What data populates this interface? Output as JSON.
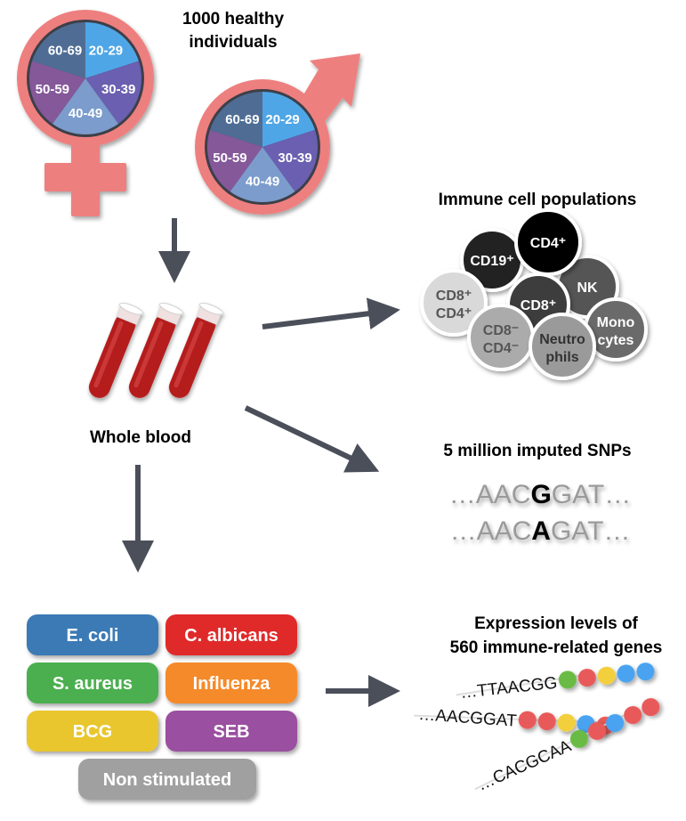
{
  "cohort": {
    "title_line1": "1000 healthy",
    "title_line2": "individuals",
    "age_groups": [
      {
        "label": "20-29",
        "color": "#4fa6e6"
      },
      {
        "label": "30-39",
        "color": "#6a5fb0"
      },
      {
        "label": "40-49",
        "color": "#7b9ccc"
      },
      {
        "label": "50-59",
        "color": "#85589a"
      },
      {
        "label": "60-69",
        "color": "#4f6d94"
      }
    ],
    "symbol_color": "#ee7f7f"
  },
  "blood": {
    "label": "Whole blood"
  },
  "immune_cells": {
    "title": "Immune cell populations",
    "cells": [
      {
        "line1": "NK",
        "line2": "",
        "fill": "#555555",
        "text": "#ffffff"
      },
      {
        "line1": "CD19⁺",
        "line2": "",
        "fill": "#222222",
        "text": "#ffffff"
      },
      {
        "line1": "CD4⁺",
        "line2": "",
        "fill": "#000000",
        "text": "#ffffff"
      },
      {
        "line1": "CD8⁺",
        "line2": "CD4⁺",
        "fill": "#d9d9d9",
        "text": "#555555"
      },
      {
        "line1": "CD8⁺",
        "line2": "",
        "fill": "#3c3c3c",
        "text": "#ffffff"
      },
      {
        "line1": "Mono",
        "line2": "cytes",
        "fill": "#6b6b6b",
        "text": "#ffffff"
      },
      {
        "line1": "CD8⁻",
        "line2": "CD4⁻",
        "fill": "#ababab",
        "text": "#555555"
      },
      {
        "line1": "Neutro",
        "line2": "phils",
        "fill": "#9a9a9a",
        "text": "#333333"
      }
    ]
  },
  "snps": {
    "title": "5 million imputed SNPs",
    "seq1": {
      "prefix": "…AAC",
      "allele": "G",
      "suffix": "GAT…"
    },
    "seq2": {
      "prefix": "…AAC",
      "allele": "A",
      "suffix": "GAT…"
    }
  },
  "stimuli": [
    {
      "label": "E. coli",
      "color": "#3a7ab5"
    },
    {
      "label": "C. albicans",
      "color": "#e02c2c"
    },
    {
      "label": "S. aureus",
      "color": "#4caf50"
    },
    {
      "label": "Influenza",
      "color": "#f58a2a"
    },
    {
      "label": "BCG",
      "color": "#e9c62e"
    },
    {
      "label": "SEB",
      "color": "#9a4fa0"
    },
    {
      "label": "Non stimulated",
      "color": "#a0a0a0"
    }
  ],
  "expression": {
    "title_line1": "Expression levels of",
    "title_line2": "560 immune-related genes",
    "strands": [
      {
        "seq": "…TTAACGG",
        "beads": [
          "#6bbb45",
          "#e85a5a",
          "#f2cf3c",
          "#4aa3f0",
          "#4aa3f0"
        ]
      },
      {
        "seq": "…AACGGAT",
        "beads": [
          "#e85a5a",
          "#e85a5a",
          "#f2cf3c",
          "#4aa3f0",
          "#e85a5a"
        ]
      },
      {
        "seq": "…CACGCAA",
        "beads": [
          "#6bbb45",
          "#e85a5a",
          "#4aa3f0",
          "#e85a5a",
          "#e85a5a"
        ]
      }
    ]
  },
  "arrow_color": "#4a4f5a"
}
